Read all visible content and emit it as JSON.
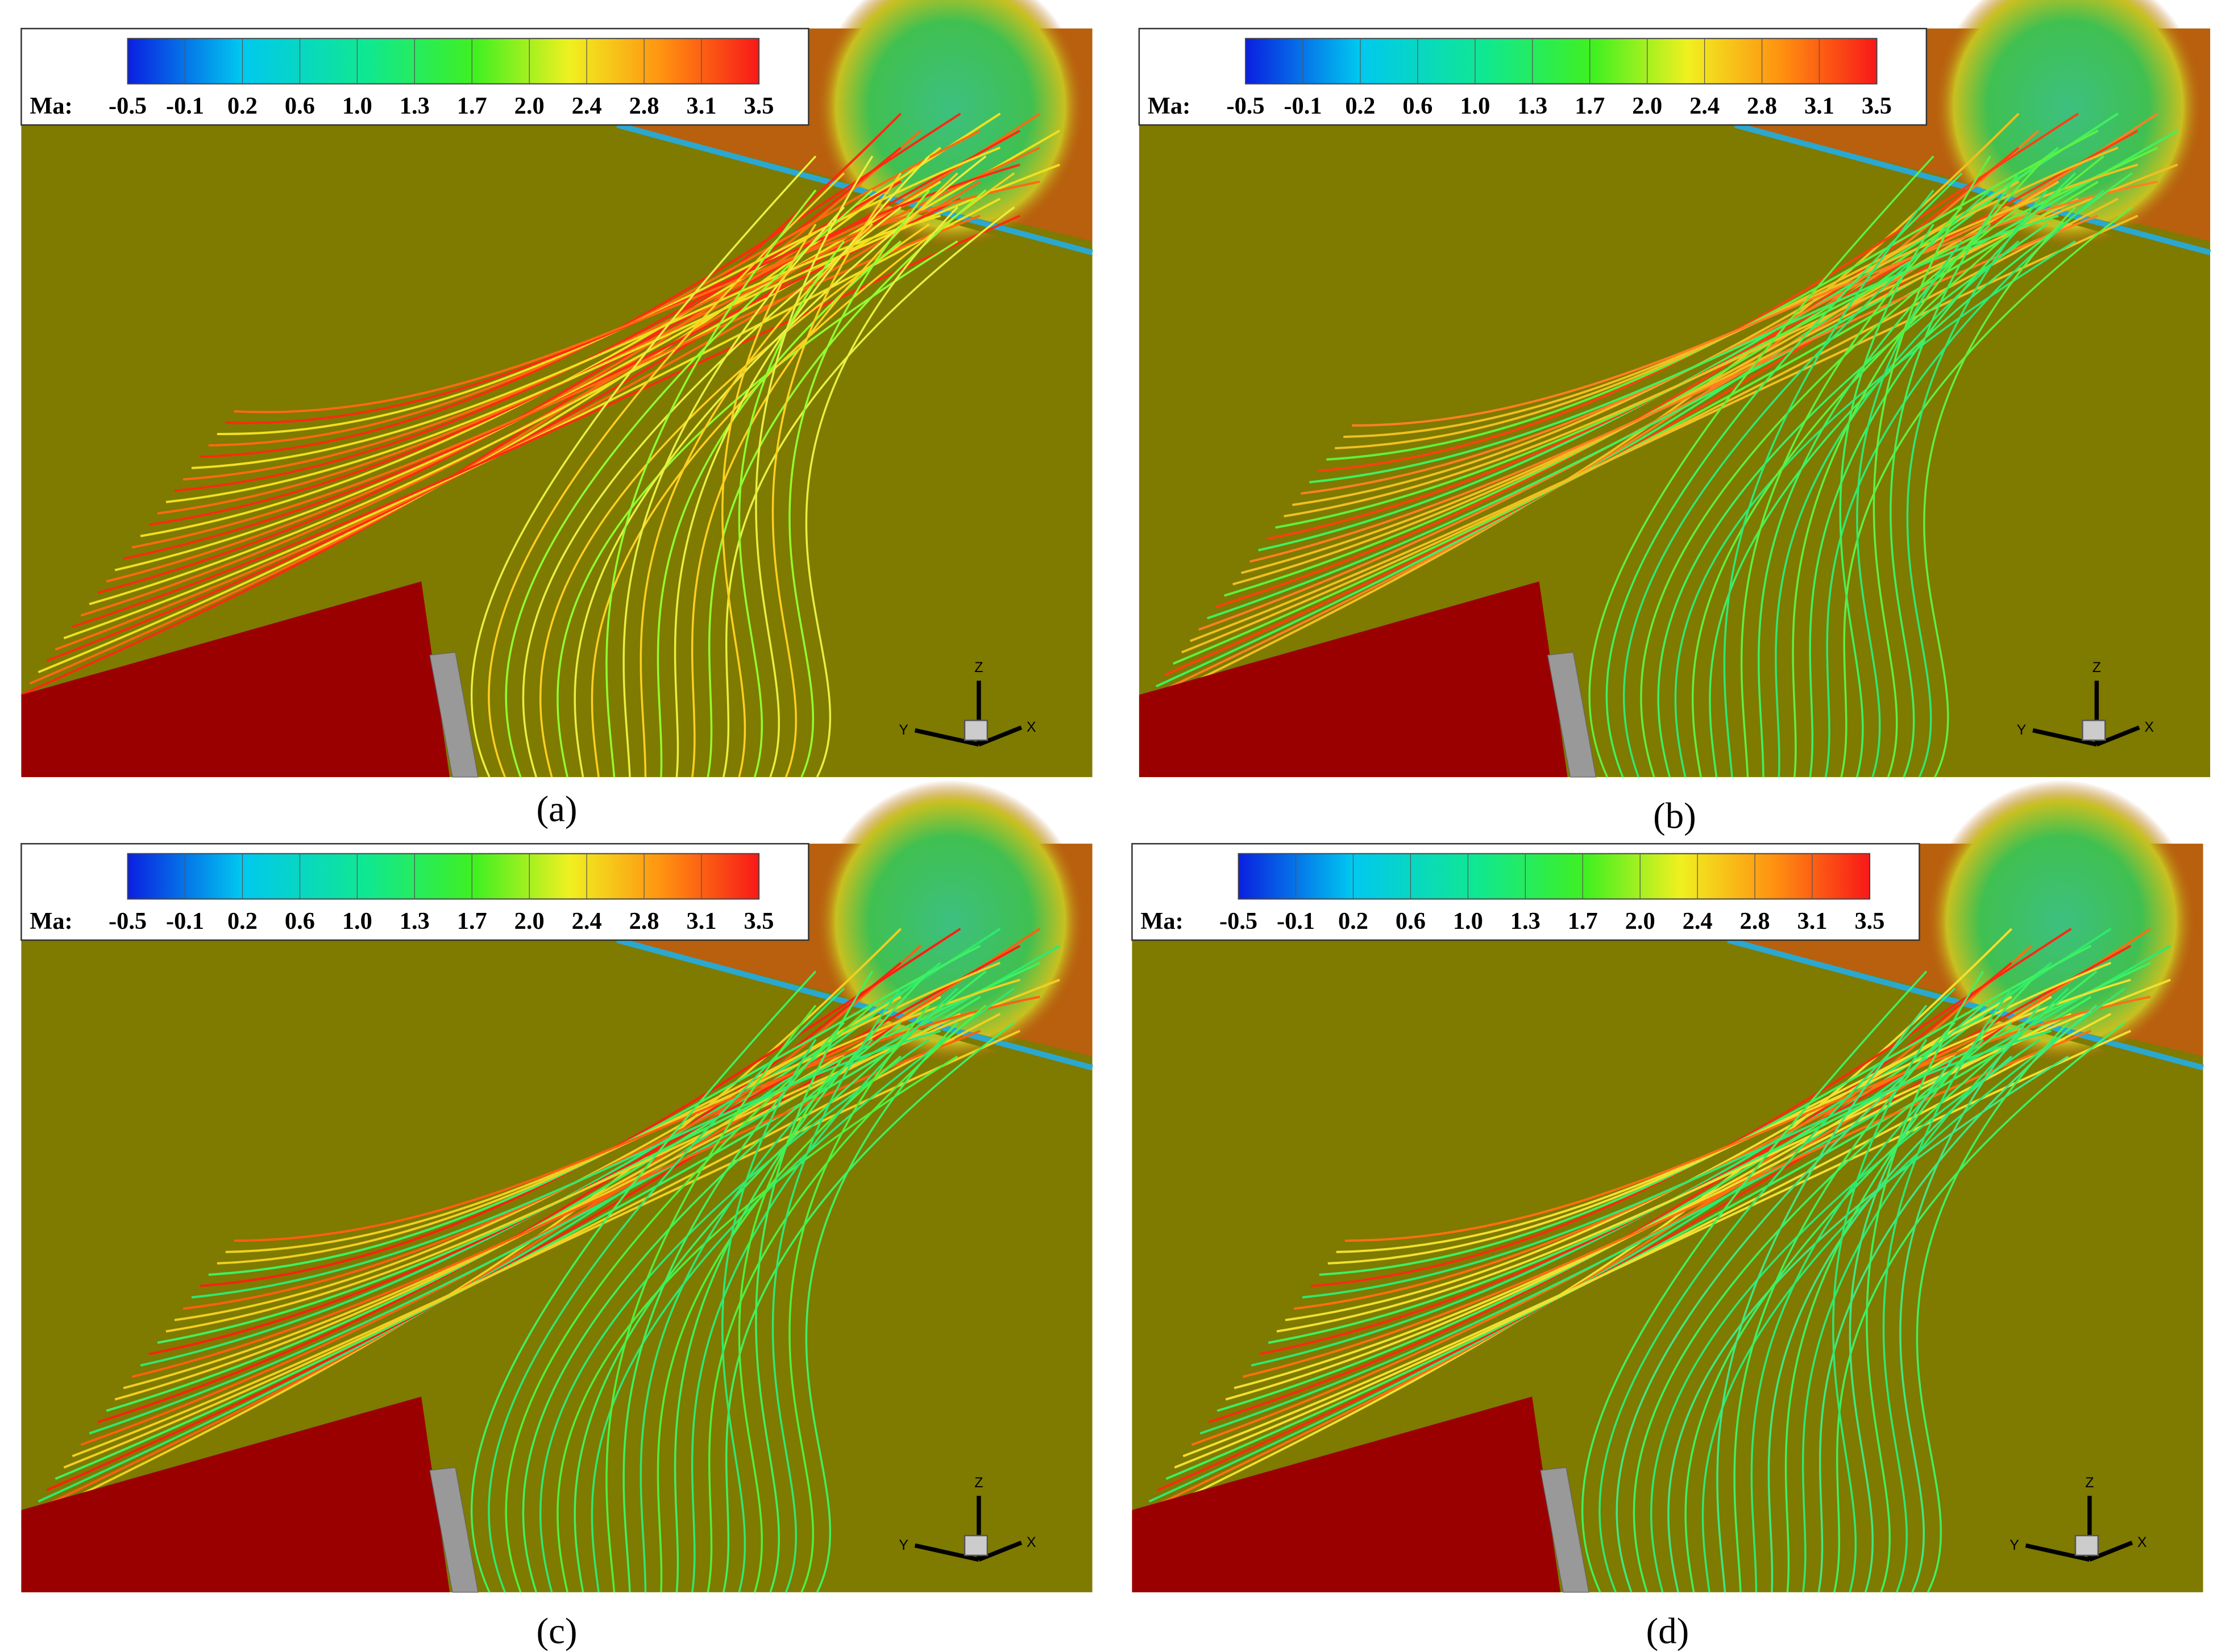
{
  "colorbar": {
    "label": "Ma:",
    "ticks": [
      "-0.5",
      "-0.1",
      "0.2",
      "0.6",
      "1.0",
      "1.3",
      "1.7",
      "2.0",
      "2.4",
      "2.8",
      "3.1",
      "3.5"
    ]
  },
  "axes": {
    "z": "Z",
    "y": "Y",
    "x": "X"
  },
  "panels": [
    {
      "caption": "(a)"
    },
    {
      "caption": "(b)"
    },
    {
      "caption": "(c)"
    },
    {
      "caption": "(d)"
    }
  ]
}
